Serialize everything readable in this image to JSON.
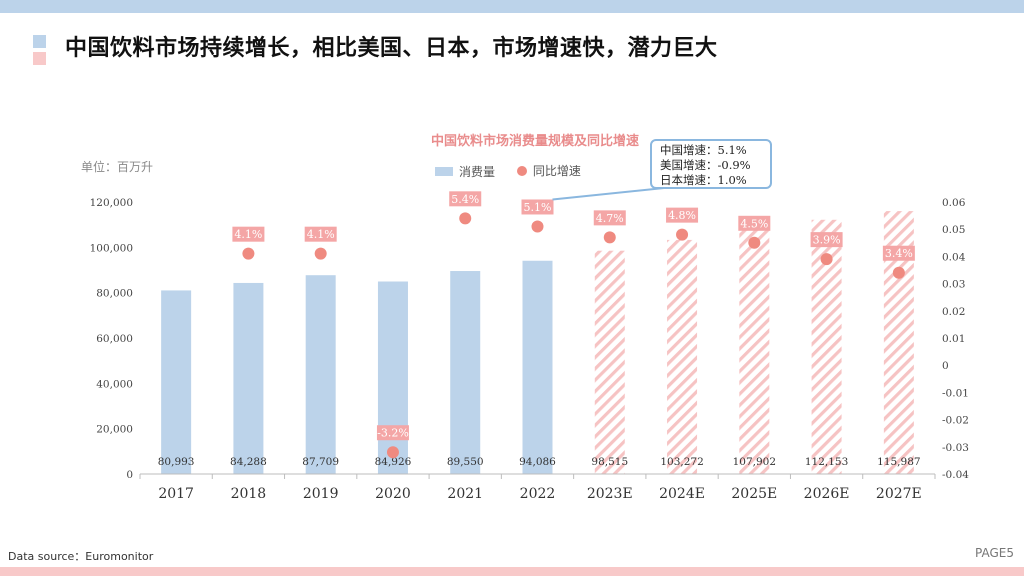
{
  "header": {
    "title": "中国饮料市场持续增长，相比美国、日本，市场增速快，潜力巨大"
  },
  "footer": {
    "source": "Data source：Euromonitor",
    "page": "PAGE5"
  },
  "callout": {
    "lines": [
      "中国增速：5.1%",
      "美国增速：-0.9%",
      "日本增速：1.0%"
    ]
  },
  "colors": {
    "bar_actual": "#bcd3ea",
    "bar_forecast_stripe": "#f6c3c3",
    "dot": "#ef8a80",
    "label_box": "#f4a6a6",
    "title_accent": "#e98c8c"
  },
  "chart_data": {
    "type": "bar",
    "title": "中国饮料市场消费量规模及同比增速",
    "unit_label": "单位：百万升",
    "categories": [
      "2017",
      "2018",
      "2019",
      "2020",
      "2021",
      "2022",
      "2023E",
      "2024E",
      "2025E",
      "2026E",
      "2027E"
    ],
    "forecast_from_index": 6,
    "series": [
      {
        "name": "消费量",
        "type": "bar",
        "axis": "left",
        "values": [
          80993,
          84288,
          87709,
          84926,
          89550,
          94086,
          98515,
          103272,
          107902,
          112153,
          115987
        ],
        "labels": [
          "80,993",
          "84,288",
          "87,709",
          "84,926",
          "89,550",
          "94,086",
          "98,515",
          "103,272",
          "107,902",
          "112,153",
          "115,987"
        ]
      },
      {
        "name": "同比增速",
        "type": "scatter",
        "axis": "right",
        "values": [
          null,
          0.041,
          0.041,
          -0.032,
          0.054,
          0.051,
          0.047,
          0.048,
          0.045,
          0.039,
          0.034
        ],
        "labels": [
          "",
          "4.1%",
          "4.1%",
          "-3.2%",
          "5.4%",
          "5.1%",
          "4.7%",
          "4.8%",
          "4.5%",
          "3.9%",
          "3.4%"
        ]
      }
    ],
    "ylim_left": [
      0,
      120000
    ],
    "yticks_left": [
      "0",
      "20,000",
      "40,000",
      "60,000",
      "80,000",
      "100,000",
      "120,000"
    ],
    "ylim_right": [
      -0.04,
      0.06
    ],
    "yticks_right": [
      "-0.04",
      "-0.03",
      "-0.02",
      "-0.01",
      "0",
      "0.01",
      "0.02",
      "0.03",
      "0.04",
      "0.05",
      "0.06"
    ],
    "legend_placement": "top-center",
    "grid": false
  }
}
